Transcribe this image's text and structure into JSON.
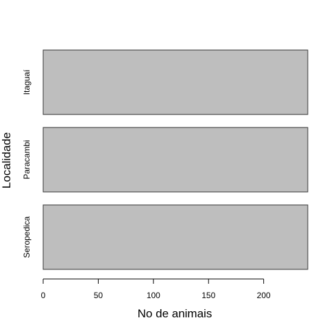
{
  "chart_data": {
    "type": "bar",
    "orientation": "horizontal",
    "categories": [
      "Seropedica",
      "Paracambi",
      "Itaguaí"
    ],
    "values": [
      240,
      240,
      240
    ],
    "title": "",
    "xlabel": "No de animais",
    "ylabel": "Localidade",
    "xlim": [
      0,
      240
    ],
    "xticks": [
      0,
      50,
      100,
      150,
      200
    ],
    "bar_color": "#bebebe",
    "bar_border_color": "#333333",
    "grid": false,
    "legend": "none"
  }
}
